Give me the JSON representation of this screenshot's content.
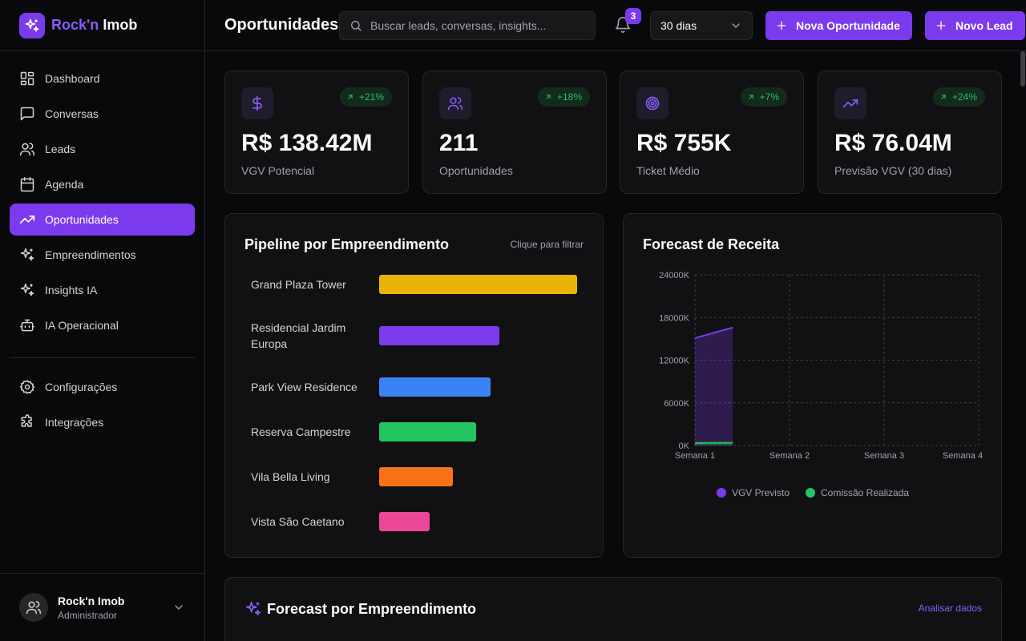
{
  "brand": {
    "name_accent": "Rock'n",
    "name_rest": "Imob"
  },
  "sidebar": {
    "items": [
      {
        "label": "Dashboard",
        "icon": "layout-grid-icon"
      },
      {
        "label": "Conversas",
        "icon": "message-square-icon"
      },
      {
        "label": "Leads",
        "icon": "users-icon"
      },
      {
        "label": "Agenda",
        "icon": "calendar-icon"
      },
      {
        "label": "Oportunidades",
        "icon": "trending-up-icon",
        "active": true
      },
      {
        "label": "Empreendimentos",
        "icon": "sparkles-icon"
      },
      {
        "label": "Insights IA",
        "icon": "sparkles-icon"
      },
      {
        "label": "IA Operacional",
        "icon": "bot-icon"
      }
    ],
    "secondary": [
      {
        "label": "Configurações",
        "icon": "settings-icon"
      },
      {
        "label": "Integrações",
        "icon": "puzzle-icon"
      }
    ],
    "user": {
      "name": "Rock'n Imob",
      "role": "Administrador"
    }
  },
  "header": {
    "title": "Oportunidades",
    "search_placeholder": "Buscar leads, conversas, insights...",
    "notifications": "3",
    "period": "30 dias",
    "new_opportunity": "Nova Oportunidade",
    "new_lead": "Novo Lead"
  },
  "stats": [
    {
      "value": "R$ 138.42M",
      "label": "VGV Potencial",
      "change": "+21%",
      "icon": "dollar-icon"
    },
    {
      "value": "211",
      "label": "Oportunidades",
      "change": "+18%",
      "icon": "users-icon"
    },
    {
      "value": "R$ 755K",
      "label": "Ticket Médio",
      "change": "+7%",
      "icon": "target-icon"
    },
    {
      "value": "R$ 76.04M",
      "label": "Previsão VGV (30 dias)",
      "change": "+24%",
      "icon": "trending-up-icon"
    }
  ],
  "pipeline": {
    "title": "Pipeline por Empreendimento",
    "hint": "Clique para filtrar",
    "items": [
      {
        "label": "Grand Plaza Tower",
        "fraction": 1.0,
        "color": "#eab308"
      },
      {
        "label": "Residencial Jardim Europa",
        "fraction": 0.607,
        "color": "#7c3aed"
      },
      {
        "label": "Park View Residence",
        "fraction": 0.563,
        "color": "#3b82f6"
      },
      {
        "label": "Reserva Campestre",
        "fraction": 0.49,
        "color": "#22c55e"
      },
      {
        "label": "Vila Bella Living",
        "fraction": 0.372,
        "color": "#f97316"
      },
      {
        "label": "Vista São Caetano",
        "fraction": 0.255,
        "color": "#ec4899"
      }
    ]
  },
  "chart_data": {
    "type": "area",
    "title": "Forecast de Receita",
    "categories": [
      "Semana 1",
      "Semana 2",
      "Semana 3",
      "Semana 4"
    ],
    "y_ticks": [
      "0K",
      "6000K",
      "12000K",
      "18000K",
      "24000K"
    ],
    "ylim": [
      0,
      24000
    ],
    "grid": true,
    "legend_position": "bottom",
    "series": [
      {
        "name": "VGV Previsto",
        "color": "#7c3aed",
        "points": [
          [
            0,
            15100
          ],
          [
            0.4,
            16600
          ]
        ]
      },
      {
        "name": "Comissão Realizada",
        "color": "#22c55e",
        "points": [
          [
            0,
            350
          ],
          [
            0.4,
            380
          ]
        ]
      }
    ]
  },
  "bottom": {
    "title": "Forecast por Empreendimento",
    "link": "Analisar dados"
  }
}
